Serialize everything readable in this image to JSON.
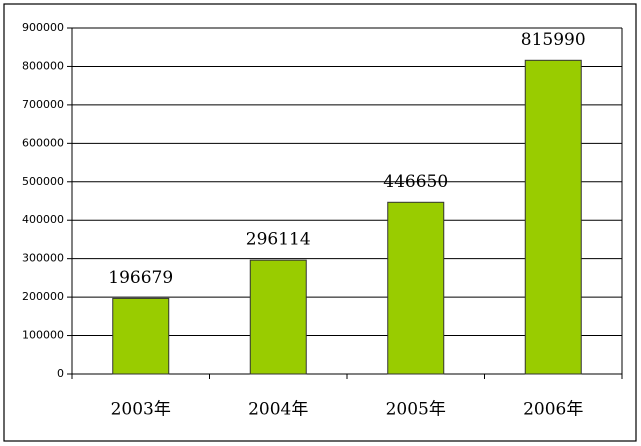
{
  "chart_data": {
    "type": "bar",
    "categories": [
      "2003年",
      "2004年",
      "2005年",
      "2006年"
    ],
    "values": [
      196679,
      296114,
      446650,
      815990
    ],
    "color": "#99cc00",
    "ylim": [
      0,
      900000
    ],
    "yticks": [
      0,
      100000,
      200000,
      300000,
      400000,
      500000,
      600000,
      700000,
      800000,
      900000
    ],
    "grid": true
  }
}
